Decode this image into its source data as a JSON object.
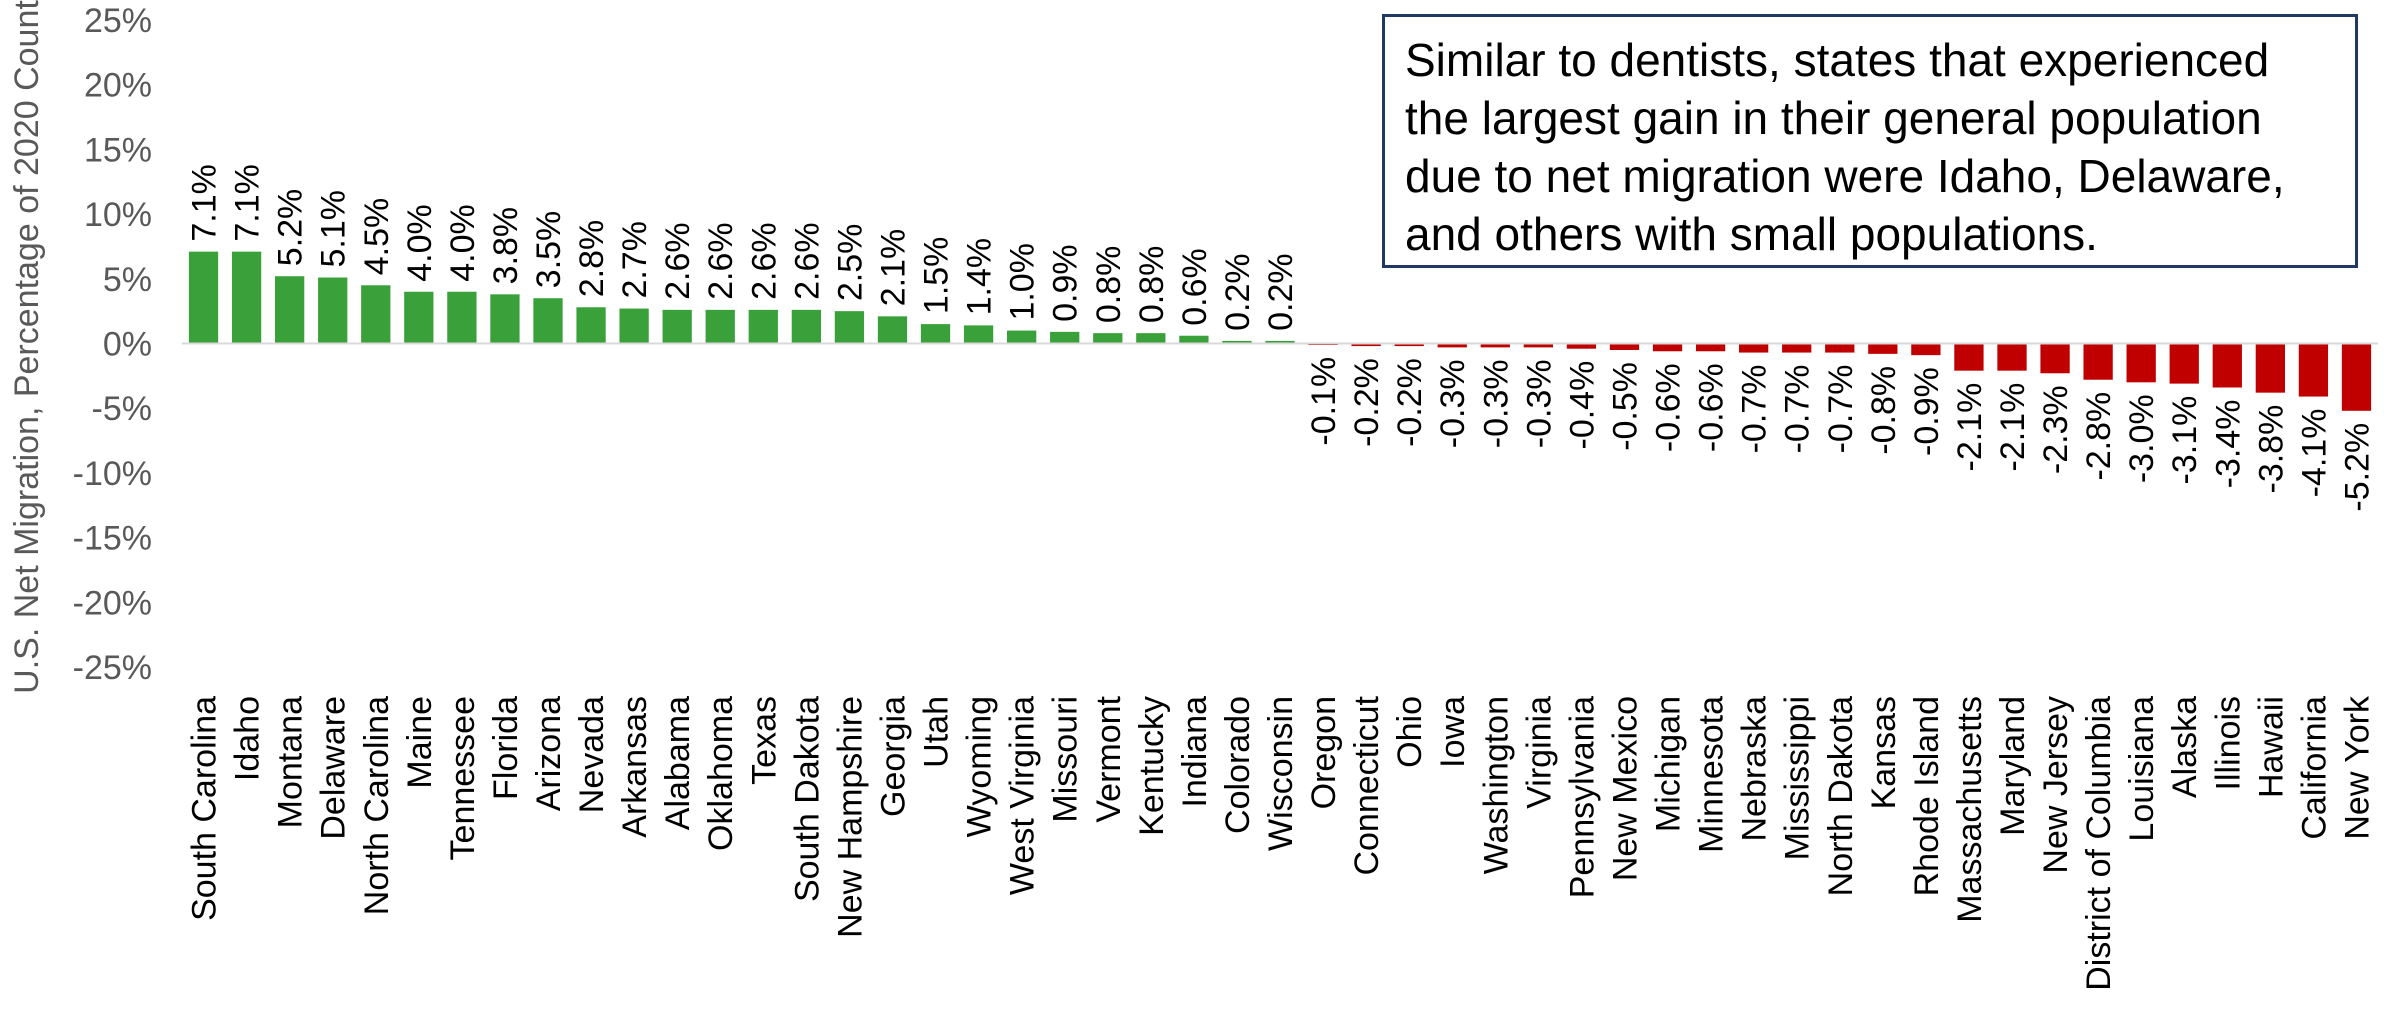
{
  "colors": {
    "positive": "#3aa13a",
    "negative": "#c00000",
    "text": "#595959",
    "axis": "#d9d9d9"
  },
  "annotation": {
    "text": "Similar to dentists, states that experienced the largest gain in their general population due to net migration were Idaho, Delaware, and others with small populations."
  },
  "chart_data": {
    "type": "bar",
    "title": "",
    "xlabel": "",
    "ylabel": "U.S. Net Migration, Percentage of 2020 Count",
    "ylim": [
      -25,
      25
    ],
    "yticks": [
      -25,
      -20,
      -15,
      -10,
      -5,
      0,
      5,
      10,
      15,
      20,
      25
    ],
    "ytick_labels": [
      "-25%",
      "-20%",
      "-15%",
      "-10%",
      "-5%",
      "0%",
      "5%",
      "10%",
      "15%",
      "20%",
      "25%"
    ],
    "grid": false,
    "categories": [
      "South Carolina",
      "Idaho",
      "Montana",
      "Delaware",
      "North Carolina",
      "Maine",
      "Tennessee",
      "Florida",
      "Arizona",
      "Nevada",
      "Arkansas",
      "Alabama",
      "Oklahoma",
      "Texas",
      "South Dakota",
      "New Hampshire",
      "Georgia",
      "Utah",
      "Wyoming",
      "West Virginia",
      "Missouri",
      "Vermont",
      "Kentucky",
      "Indiana",
      "Colorado",
      "Wisconsin",
      "Oregon",
      "Connecticut",
      "Ohio",
      "Iowa",
      "Washington",
      "Virginia",
      "Pennsylvania",
      "New Mexico",
      "Michigan",
      "Minnesota",
      "Nebraska",
      "Mississippi",
      "North Dakota",
      "Kansas",
      "Rhode Island",
      "Massachusetts",
      "Maryland",
      "New Jersey",
      "District of Columbia",
      "Louisiana",
      "Alaska",
      "Illinois",
      "Hawaii",
      "California",
      "New York"
    ],
    "values": [
      7.1,
      7.1,
      5.2,
      5.1,
      4.5,
      4.0,
      4.0,
      3.8,
      3.5,
      2.8,
      2.7,
      2.6,
      2.6,
      2.6,
      2.6,
      2.5,
      2.1,
      1.5,
      1.4,
      1.0,
      0.9,
      0.8,
      0.8,
      0.6,
      0.2,
      0.2,
      -0.1,
      -0.2,
      -0.2,
      -0.3,
      -0.3,
      -0.3,
      -0.4,
      -0.5,
      -0.6,
      -0.6,
      -0.7,
      -0.7,
      -0.7,
      -0.8,
      -0.9,
      -2.1,
      -2.1,
      -2.3,
      -2.8,
      -3.0,
      -3.1,
      -3.4,
      -3.8,
      -4.1,
      -5.2
    ],
    "data_labels": [
      "7.1%",
      "7.1%",
      "5.2%",
      "5.1%",
      "4.5%",
      "4.0%",
      "4.0%",
      "3.8%",
      "3.5%",
      "2.8%",
      "2.7%",
      "2.6%",
      "2.6%",
      "2.6%",
      "2.6%",
      "2.5%",
      "2.1%",
      "1.5%",
      "1.4%",
      "1.0%",
      "0.9%",
      "0.8%",
      "0.8%",
      "0.6%",
      "0.2%",
      "0.2%",
      "-0.1%",
      "-0.2%",
      "-0.2%",
      "-0.3%",
      "-0.3%",
      "-0.3%",
      "-0.4%",
      "-0.5%",
      "-0.6%",
      "-0.6%",
      "-0.7%",
      "-0.7%",
      "-0.7%",
      "-0.8%",
      "-0.9%",
      "-2.1%",
      "-2.1%",
      "-2.3%",
      "-2.8%",
      "-3.0%",
      "-3.1%",
      "-3.4%",
      "-3.8%",
      "-4.1%",
      "-5.2%"
    ]
  }
}
